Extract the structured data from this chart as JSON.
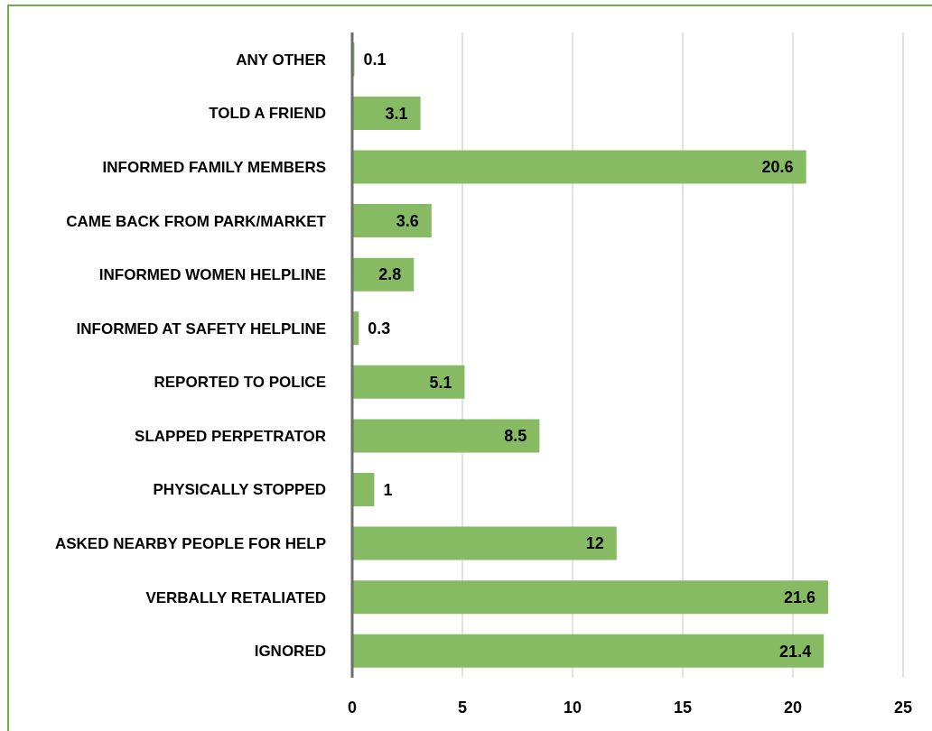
{
  "chart_data": {
    "type": "bar",
    "orientation": "horizontal",
    "categories": [
      "ANY OTHER",
      "TOLD A FRIEND",
      "INFORMED FAMILY MEMBERS",
      "CAME BACK FROM PARK/MARKET",
      "INFORMED WOMEN HELPLINE",
      "INFORMED AT SAFETY HELPLINE",
      "REPORTED TO POLICE",
      "SLAPPED PERPETRATOR",
      "PHYSICALLY STOPPED",
      "ASKED NEARBY PEOPLE FOR HELP",
      "VERBALLY RETALIATED",
      "IGNORED"
    ],
    "values": [
      0.1,
      3.1,
      20.6,
      3.6,
      2.8,
      0.3,
      5.1,
      8.5,
      1,
      12,
      21.6,
      21.4
    ],
    "color": "#86bb64",
    "xlim": [
      0,
      25
    ],
    "xticks": [
      0,
      5,
      10,
      15,
      20,
      25
    ],
    "grid": "x",
    "data_labels": true
  }
}
